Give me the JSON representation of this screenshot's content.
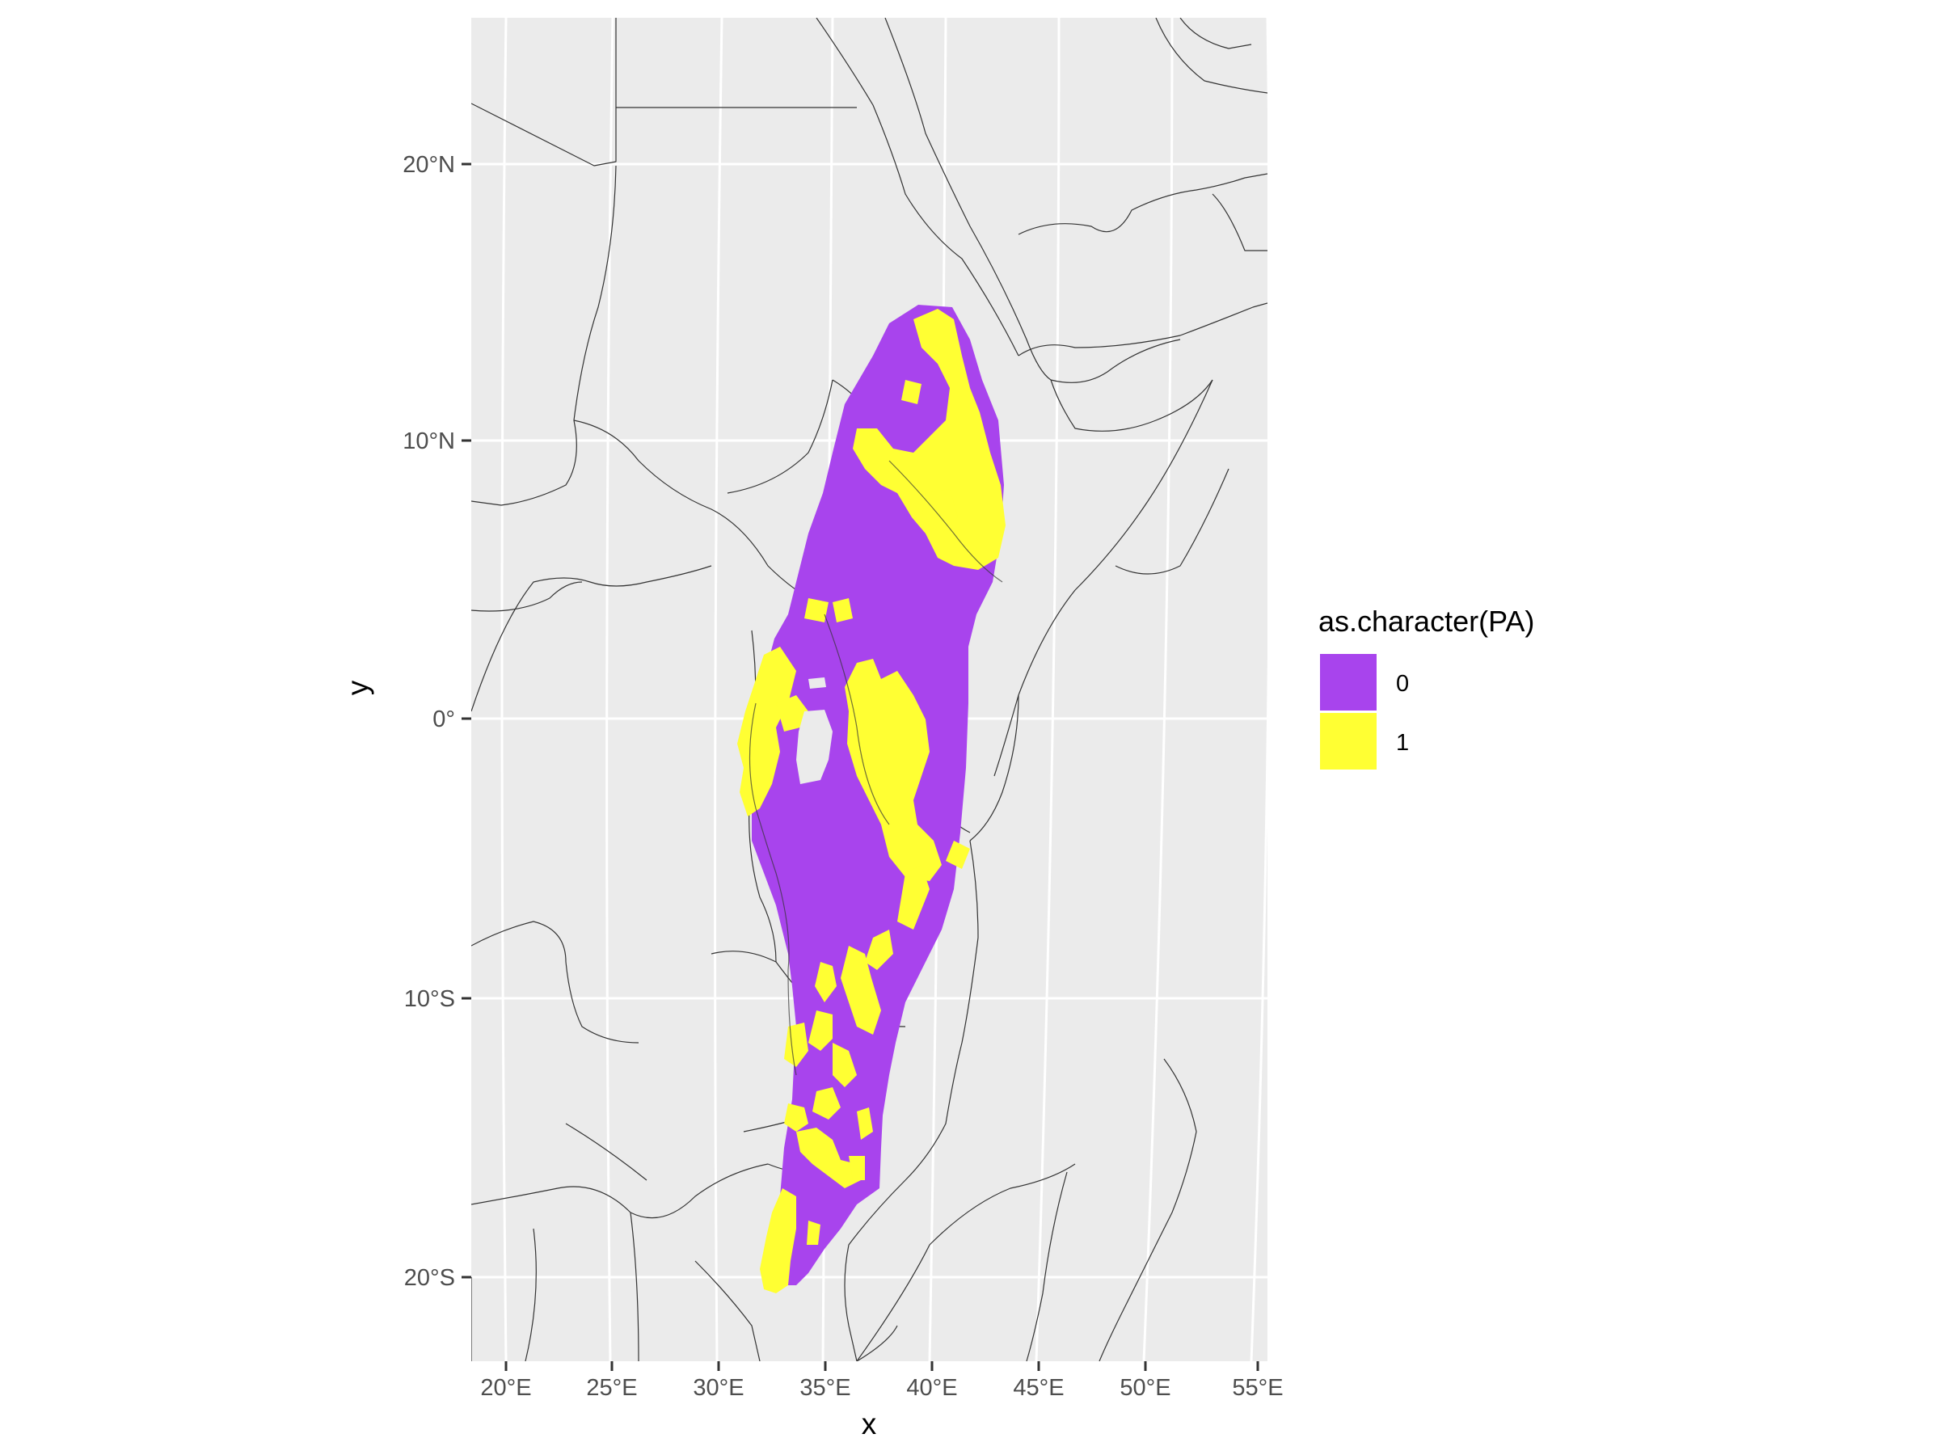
{
  "axes": {
    "x_title": "x",
    "y_title": "y",
    "x_ticks": [
      "20°E",
      "25°E",
      "30°E",
      "35°E",
      "40°E",
      "45°E",
      "50°E",
      "55°E"
    ],
    "y_ticks": [
      "20°N",
      "10°N",
      "0°",
      "10°S",
      "20°S"
    ]
  },
  "legend": {
    "title": "as.character(PA)",
    "items": [
      {
        "label": "0",
        "color": "#A844ED"
      },
      {
        "label": "1",
        "color": "#FFFF33"
      }
    ]
  },
  "colors": {
    "panel_background": "#EBEBEB",
    "gridline": "#FFFFFF",
    "borders": "#333333",
    "absence": "#A844ED",
    "presence": "#FFFF33"
  },
  "chart_data": {
    "type": "map",
    "fill_variable": "as.character(PA)",
    "categories": [
      "0",
      "1"
    ],
    "xlim": [
      "18°E",
      "55°E"
    ],
    "ylim": [
      "23°S",
      "25°N"
    ],
    "region": "East Africa",
    "description_values": {
      "category_0": "absence (purple) covering the study band from ~15°N to ~20°S",
      "category_1": "presence (yellow) patches in Ethiopian highlands, Lake Victoria basin, Kenya highlands, Malawi and Zimbabwe"
    }
  }
}
